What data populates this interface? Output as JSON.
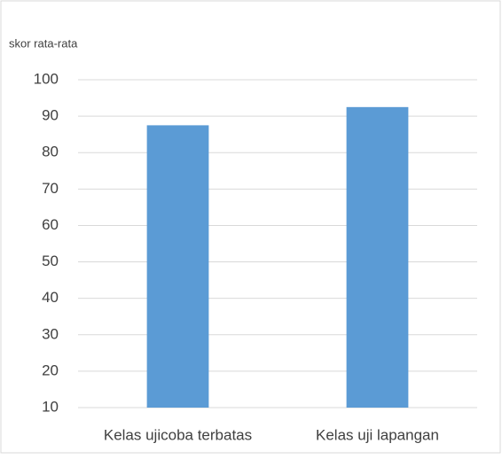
{
  "chart_data": {
    "type": "bar",
    "y_label": "skor rata-rata",
    "categories": [
      "Kelas ujicoba terbatas",
      "Kelas uji lapangan"
    ],
    "values": [
      87.5,
      92.5
    ],
    "color": "#5b9bd5",
    "ylim": [
      10,
      100
    ],
    "yticks": [
      10,
      20,
      30,
      40,
      50,
      60,
      70,
      80,
      90,
      100
    ],
    "grid": true
  }
}
